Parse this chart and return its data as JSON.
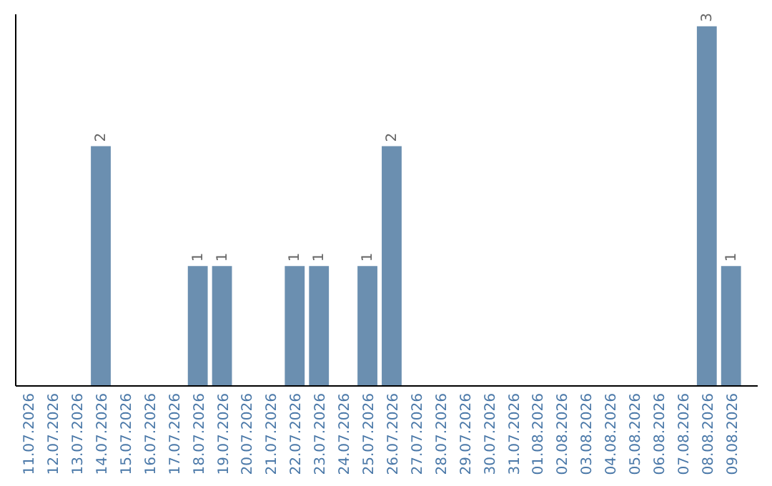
{
  "chart_data": {
    "type": "bar",
    "categories": [
      "11.07.2026",
      "12.07.2026",
      "13.07.2026",
      "14.07.2026",
      "15.07.2026",
      "16.07.2026",
      "17.07.2026",
      "18.07.2026",
      "19.07.2026",
      "20.07.2026",
      "21.07.2026",
      "22.07.2026",
      "23.07.2026",
      "24.07.2026",
      "25.07.2026",
      "26.07.2026",
      "27.07.2026",
      "28.07.2026",
      "29.07.2026",
      "30.07.2026",
      "31.07.2026",
      "01.08.2026",
      "02.08.2026",
      "03.08.2026",
      "04.08.2026",
      "05.08.2026",
      "06.08.2026",
      "07.08.2026",
      "08.08.2026",
      "09.08.2026"
    ],
    "values": [
      0,
      0,
      0,
      2,
      0,
      0,
      0,
      1,
      1,
      0,
      0,
      1,
      1,
      0,
      1,
      2,
      0,
      0,
      0,
      0,
      0,
      0,
      0,
      0,
      0,
      0,
      0,
      0,
      3,
      1
    ],
    "value_labels": [
      null,
      null,
      null,
      "2",
      null,
      null,
      null,
      "1",
      "1",
      null,
      null,
      "1",
      "1",
      null,
      "1",
      "2",
      null,
      null,
      null,
      null,
      null,
      null,
      null,
      null,
      null,
      null,
      null,
      null,
      "3",
      "1"
    ],
    "color": "#6b8fb0",
    "ylim": [
      0,
      3.1
    ],
    "tick_labels": "x"
  }
}
